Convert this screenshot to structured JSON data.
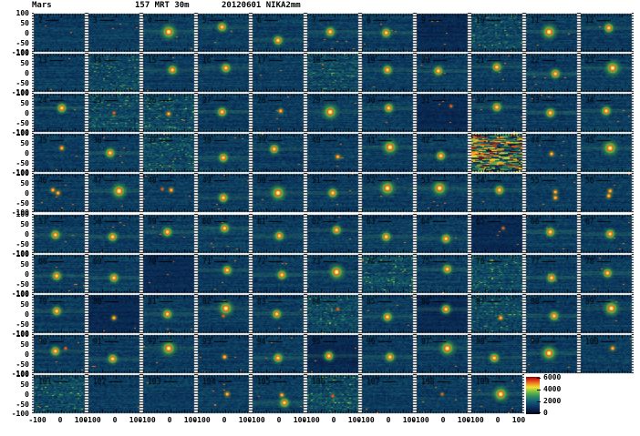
{
  "chart_data": {
    "type": "heatmap",
    "title_parts": [
      "Mars",
      "157 MRT 30m",
      "20120601 NIKA2mm"
    ],
    "x_range": [
      -100,
      100
    ],
    "y_range": [
      -100,
      100
    ],
    "x_ticks": [
      "-100",
      "0",
      "100"
    ],
    "y_ticks": [
      "100",
      "50",
      "0",
      "-50",
      "-100"
    ],
    "grid": {
      "rows": 10,
      "cols": 11,
      "bottom_row_cols": 9,
      "x_labeled_columns": 9
    },
    "colorbar": {
      "min": 0,
      "max": 6000,
      "tick_labels": [
        "6000",
        "4000",
        "2000",
        "0"
      ]
    },
    "colors": {
      "background": "#ffffff",
      "text": "#000000",
      "noise_deep": "#071c42",
      "noise_mid": "#15607a",
      "halo_green": "#3f9f50",
      "ring_orange": "#e86018",
      "core_yellow": "#ffd830",
      "peak_red": "#d92c16"
    },
    "panels": [
      {
        "n": "2",
        "t": "noise",
        "s": []
      },
      {
        "n": "3",
        "t": "noise",
        "s": []
      },
      {
        "n": "4",
        "t": "src",
        "s": [
          [
            0,
            5,
            3
          ]
        ]
      },
      {
        "n": "5",
        "t": "src",
        "s": [
          [
            -5,
            30,
            2
          ]
        ]
      },
      {
        "n": "6",
        "t": "src",
        "s": [
          [
            0,
            -40,
            2
          ]
        ]
      },
      {
        "n": "7",
        "t": "src",
        "s": [
          [
            -10,
            5,
            2
          ]
        ]
      },
      {
        "n": "8",
        "t": "src",
        "s": [
          [
            -5,
            0,
            2
          ]
        ]
      },
      {
        "n": "9",
        "t": "dark",
        "s": []
      },
      {
        "n": "10",
        "t": "green",
        "s": []
      },
      {
        "n": "11",
        "t": "src",
        "s": [
          [
            -10,
            5,
            3
          ]
        ]
      },
      {
        "n": "12",
        "t": "src",
        "s": [
          [
            10,
            25,
            2
          ]
        ]
      },
      {
        "n": "13",
        "t": "noise",
        "s": []
      },
      {
        "n": "14",
        "t": "green",
        "s": []
      },
      {
        "n": "15",
        "t": "src",
        "s": [
          [
            15,
            15,
            2
          ]
        ]
      },
      {
        "n": "16",
        "t": "src",
        "s": [
          [
            10,
            25,
            2
          ]
        ]
      },
      {
        "n": "17",
        "t": "noise",
        "s": []
      },
      {
        "n": "18",
        "t": "green",
        "s": []
      },
      {
        "n": "19",
        "t": "src",
        "s": [
          [
            0,
            15,
            2
          ]
        ]
      },
      {
        "n": "20",
        "t": "src",
        "s": [
          [
            -15,
            10,
            2
          ]
        ]
      },
      {
        "n": "21",
        "t": "src",
        "s": [
          [
            0,
            30,
            2
          ]
        ]
      },
      {
        "n": "22",
        "t": "src",
        "s": [
          [
            15,
            -5,
            2
          ]
        ]
      },
      {
        "n": "23",
        "t": "src",
        "s": [
          [
            25,
            25,
            3
          ]
        ]
      },
      {
        "n": "24",
        "t": "src",
        "s": [
          [
            10,
            25,
            2
          ]
        ]
      },
      {
        "n": "25",
        "t": "green",
        "s": [
          [
            0,
            0,
            0
          ]
        ]
      },
      {
        "n": "26",
        "t": "green",
        "s": [
          [
            0,
            -5,
            1
          ]
        ]
      },
      {
        "n": "27",
        "t": "src",
        "s": [
          [
            -5,
            5,
            2
          ]
        ]
      },
      {
        "n": "28",
        "t": "src",
        "s": [
          [
            10,
            10,
            1
          ]
        ]
      },
      {
        "n": "29",
        "t": "src",
        "s": [
          [
            -10,
            5,
            3
          ]
        ]
      },
      {
        "n": "30",
        "t": "src",
        "s": [
          [
            5,
            25,
            2
          ]
        ]
      },
      {
        "n": "31",
        "t": "dark",
        "s": [
          [
            35,
            35,
            0
          ]
        ]
      },
      {
        "n": "32",
        "t": "src",
        "s": [
          [
            0,
            30,
            2
          ]
        ]
      },
      {
        "n": "33",
        "t": "src",
        "s": [
          [
            -5,
            0,
            2
          ]
        ]
      },
      {
        "n": "34",
        "t": "src",
        "s": [
          [
            0,
            10,
            2
          ]
        ]
      },
      {
        "n": "35",
        "t": "src",
        "s": [
          [
            10,
            25,
            1
          ]
        ]
      },
      {
        "n": "36",
        "t": "src",
        "s": [
          [
            -15,
            0,
            2
          ]
        ]
      },
      {
        "n": "37",
        "t": "green",
        "s": []
      },
      {
        "n": "38",
        "t": "src",
        "s": [
          [
            0,
            -25,
            2
          ]
        ]
      },
      {
        "n": "39",
        "t": "src",
        "s": [
          [
            -15,
            20,
            2
          ]
        ]
      },
      {
        "n": "40",
        "t": "src",
        "s": [
          [
            20,
            -20,
            1
          ]
        ]
      },
      {
        "n": "41",
        "t": "src",
        "s": [
          [
            10,
            30,
            3
          ]
        ]
      },
      {
        "n": "42",
        "t": "src",
        "s": [
          [
            -5,
            -15,
            2
          ]
        ]
      },
      {
        "n": "43",
        "t": "streak",
        "s": []
      },
      {
        "n": "44",
        "t": "src",
        "s": [
          [
            0,
            -5,
            1
          ]
        ]
      },
      {
        "n": "45",
        "t": "src",
        "s": [
          [
            15,
            25,
            3
          ]
        ]
      },
      {
        "n": "46",
        "t": "src",
        "s": [
          [
            -5,
            0,
            1
          ],
          [
            -25,
            15,
            1
          ]
        ]
      },
      {
        "n": "47",
        "t": "src",
        "s": [
          [
            20,
            10,
            3
          ]
        ]
      },
      {
        "n": "48",
        "t": "src",
        "s": [
          [
            10,
            15,
            1
          ],
          [
            -25,
            20,
            0
          ]
        ]
      },
      {
        "n": "49",
        "t": "src",
        "s": [
          [
            0,
            -25,
            2
          ]
        ]
      },
      {
        "n": "50",
        "t": "src",
        "s": [
          [
            0,
            0,
            3
          ]
        ]
      },
      {
        "n": "51",
        "t": "src",
        "s": [
          [
            0,
            0,
            2
          ]
        ]
      },
      {
        "n": "52",
        "t": "src",
        "s": [
          [
            0,
            25,
            3
          ]
        ]
      },
      {
        "n": "53",
        "t": "src",
        "s": [
          [
            -10,
            25,
            3
          ]
        ]
      },
      {
        "n": "54",
        "t": "src",
        "s": [
          [
            10,
            15,
            2
          ]
        ]
      },
      {
        "n": "55",
        "t": "src",
        "s": [
          [
            15,
            5,
            1
          ],
          [
            15,
            -25,
            1
          ]
        ]
      },
      {
        "n": "56",
        "t": "src",
        "s": [
          [
            15,
            10,
            1
          ],
          [
            10,
            -15,
            1
          ]
        ]
      },
      {
        "n": "57",
        "t": "src",
        "s": [
          [
            -15,
            -5,
            2
          ]
        ]
      },
      {
        "n": "58",
        "t": "src",
        "s": [
          [
            -5,
            -15,
            2
          ]
        ]
      },
      {
        "n": "59",
        "t": "src",
        "s": [
          [
            -5,
            10,
            2
          ]
        ]
      },
      {
        "n": "60",
        "t": "src",
        "s": [
          [
            5,
            30,
            2
          ]
        ]
      },
      {
        "n": "61",
        "t": "src",
        "s": [
          [
            5,
            -10,
            2
          ]
        ]
      },
      {
        "n": "62",
        "t": "src",
        "s": [
          [
            15,
            20,
            2
          ]
        ]
      },
      {
        "n": "63",
        "t": "src",
        "s": [
          [
            -5,
            -15,
            2
          ]
        ]
      },
      {
        "n": "64",
        "t": "src",
        "s": [
          [
            15,
            -25,
            2
          ]
        ]
      },
      {
        "n": "65",
        "t": "dark",
        "s": [
          [
            25,
            30,
            0
          ]
        ]
      },
      {
        "n": "66",
        "t": "src",
        "s": [
          [
            -5,
            10,
            2
          ]
        ]
      },
      {
        "n": "67",
        "t": "src",
        "s": [
          [
            15,
            0,
            2
          ]
        ]
      },
      {
        "n": "68",
        "t": "src",
        "s": [
          [
            -10,
            -10,
            2
          ]
        ]
      },
      {
        "n": "69",
        "t": "src",
        "s": [
          [
            0,
            -20,
            2
          ]
        ]
      },
      {
        "n": "70",
        "t": "dark",
        "s": []
      },
      {
        "n": "71",
        "t": "src",
        "s": [
          [
            15,
            20,
            2
          ]
        ]
      },
      {
        "n": "72",
        "t": "src",
        "s": [
          [
            15,
            -5,
            2
          ]
        ]
      },
      {
        "n": "73",
        "t": "src",
        "s": [
          [
            15,
            10,
            3
          ]
        ]
      },
      {
        "n": "74",
        "t": "green",
        "s": []
      },
      {
        "n": "75",
        "t": "src",
        "s": [
          [
            20,
            25,
            2
          ]
        ]
      },
      {
        "n": "76",
        "t": "green",
        "s": []
      },
      {
        "n": "77",
        "t": "src",
        "s": [
          [
            0,
            -20,
            2
          ]
        ]
      },
      {
        "n": "78",
        "t": "src",
        "s": [
          [
            5,
            5,
            2
          ]
        ]
      },
      {
        "n": "79",
        "t": "src",
        "s": [
          [
            -10,
            15,
            2
          ]
        ]
      },
      {
        "n": "80",
        "t": "dark",
        "s": [
          [
            0,
            -20,
            1
          ]
        ]
      },
      {
        "n": "81",
        "t": "src",
        "s": [
          [
            -5,
            0,
            2
          ]
        ]
      },
      {
        "n": "82",
        "t": "src",
        "s": [
          [
            10,
            30,
            3
          ],
          [
            0,
            -10,
            0
          ]
        ]
      },
      {
        "n": "83",
        "t": "src",
        "s": [
          [
            -5,
            0,
            2
          ]
        ]
      },
      {
        "n": "84",
        "t": "green",
        "s": [
          [
            20,
            25,
            0
          ]
        ]
      },
      {
        "n": "85",
        "t": "src",
        "s": [
          [
            0,
            -15,
            2
          ]
        ]
      },
      {
        "n": "86",
        "t": "dark",
        "s": [
          [
            15,
            25,
            2
          ]
        ]
      },
      {
        "n": "87",
        "t": "green",
        "s": [
          [
            15,
            -20,
            1
          ]
        ]
      },
      {
        "n": "88",
        "t": "src",
        "s": [
          [
            10,
            -10,
            2
          ]
        ]
      },
      {
        "n": "89",
        "t": "src",
        "s": [
          [
            20,
            30,
            3
          ]
        ]
      },
      {
        "n": "90",
        "t": "src",
        "s": [
          [
            -15,
            15,
            2
          ],
          [
            25,
            30,
            0
          ]
        ]
      },
      {
        "n": "91",
        "t": "src",
        "s": [
          [
            -5,
            -25,
            2
          ]
        ]
      },
      {
        "n": "92",
        "t": "src",
        "s": [
          [
            0,
            30,
            3
          ]
        ]
      },
      {
        "n": "93",
        "t": "src",
        "s": [
          [
            5,
            -15,
            1
          ]
        ]
      },
      {
        "n": "94",
        "t": "src",
        "s": [
          [
            0,
            -20,
            2
          ]
        ]
      },
      {
        "n": "95",
        "t": "dark",
        "s": [
          [
            -15,
            -10,
            2
          ]
        ]
      },
      {
        "n": "96",
        "t": "src",
        "s": [
          [
            10,
            -15,
            2
          ]
        ]
      },
      {
        "n": "97",
        "t": "src",
        "s": [
          [
            20,
            30,
            3
          ]
        ]
      },
      {
        "n": "98",
        "t": "src",
        "s": [
          [
            -10,
            -20,
            2
          ]
        ]
      },
      {
        "n": "99",
        "t": "src",
        "s": [
          [
            -10,
            5,
            3
          ]
        ]
      },
      {
        "n": "100",
        "t": "src",
        "s": [
          [
            25,
            30,
            1
          ]
        ]
      },
      {
        "n": "101",
        "t": "green",
        "s": []
      },
      {
        "n": "102",
        "t": "noise",
        "s": []
      },
      {
        "n": "103",
        "t": "noise",
        "s": []
      },
      {
        "n": "104",
        "t": "src",
        "s": [
          [
            15,
            0,
            1
          ]
        ]
      },
      {
        "n": "105",
        "t": "src",
        "s": [
          [
            15,
            -5,
            1
          ],
          [
            25,
            -45,
            2
          ]
        ]
      },
      {
        "n": "106",
        "t": "green",
        "s": [
          [
            0,
            -10,
            0
          ]
        ]
      },
      {
        "n": "107",
        "t": "noise",
        "s": []
      },
      {
        "n": "108",
        "t": "src",
        "s": [
          [
            0,
            0,
            0
          ]
        ]
      },
      {
        "n": "109",
        "t": "src",
        "s": [
          [
            15,
            0,
            3
          ]
        ]
      }
    ]
  }
}
